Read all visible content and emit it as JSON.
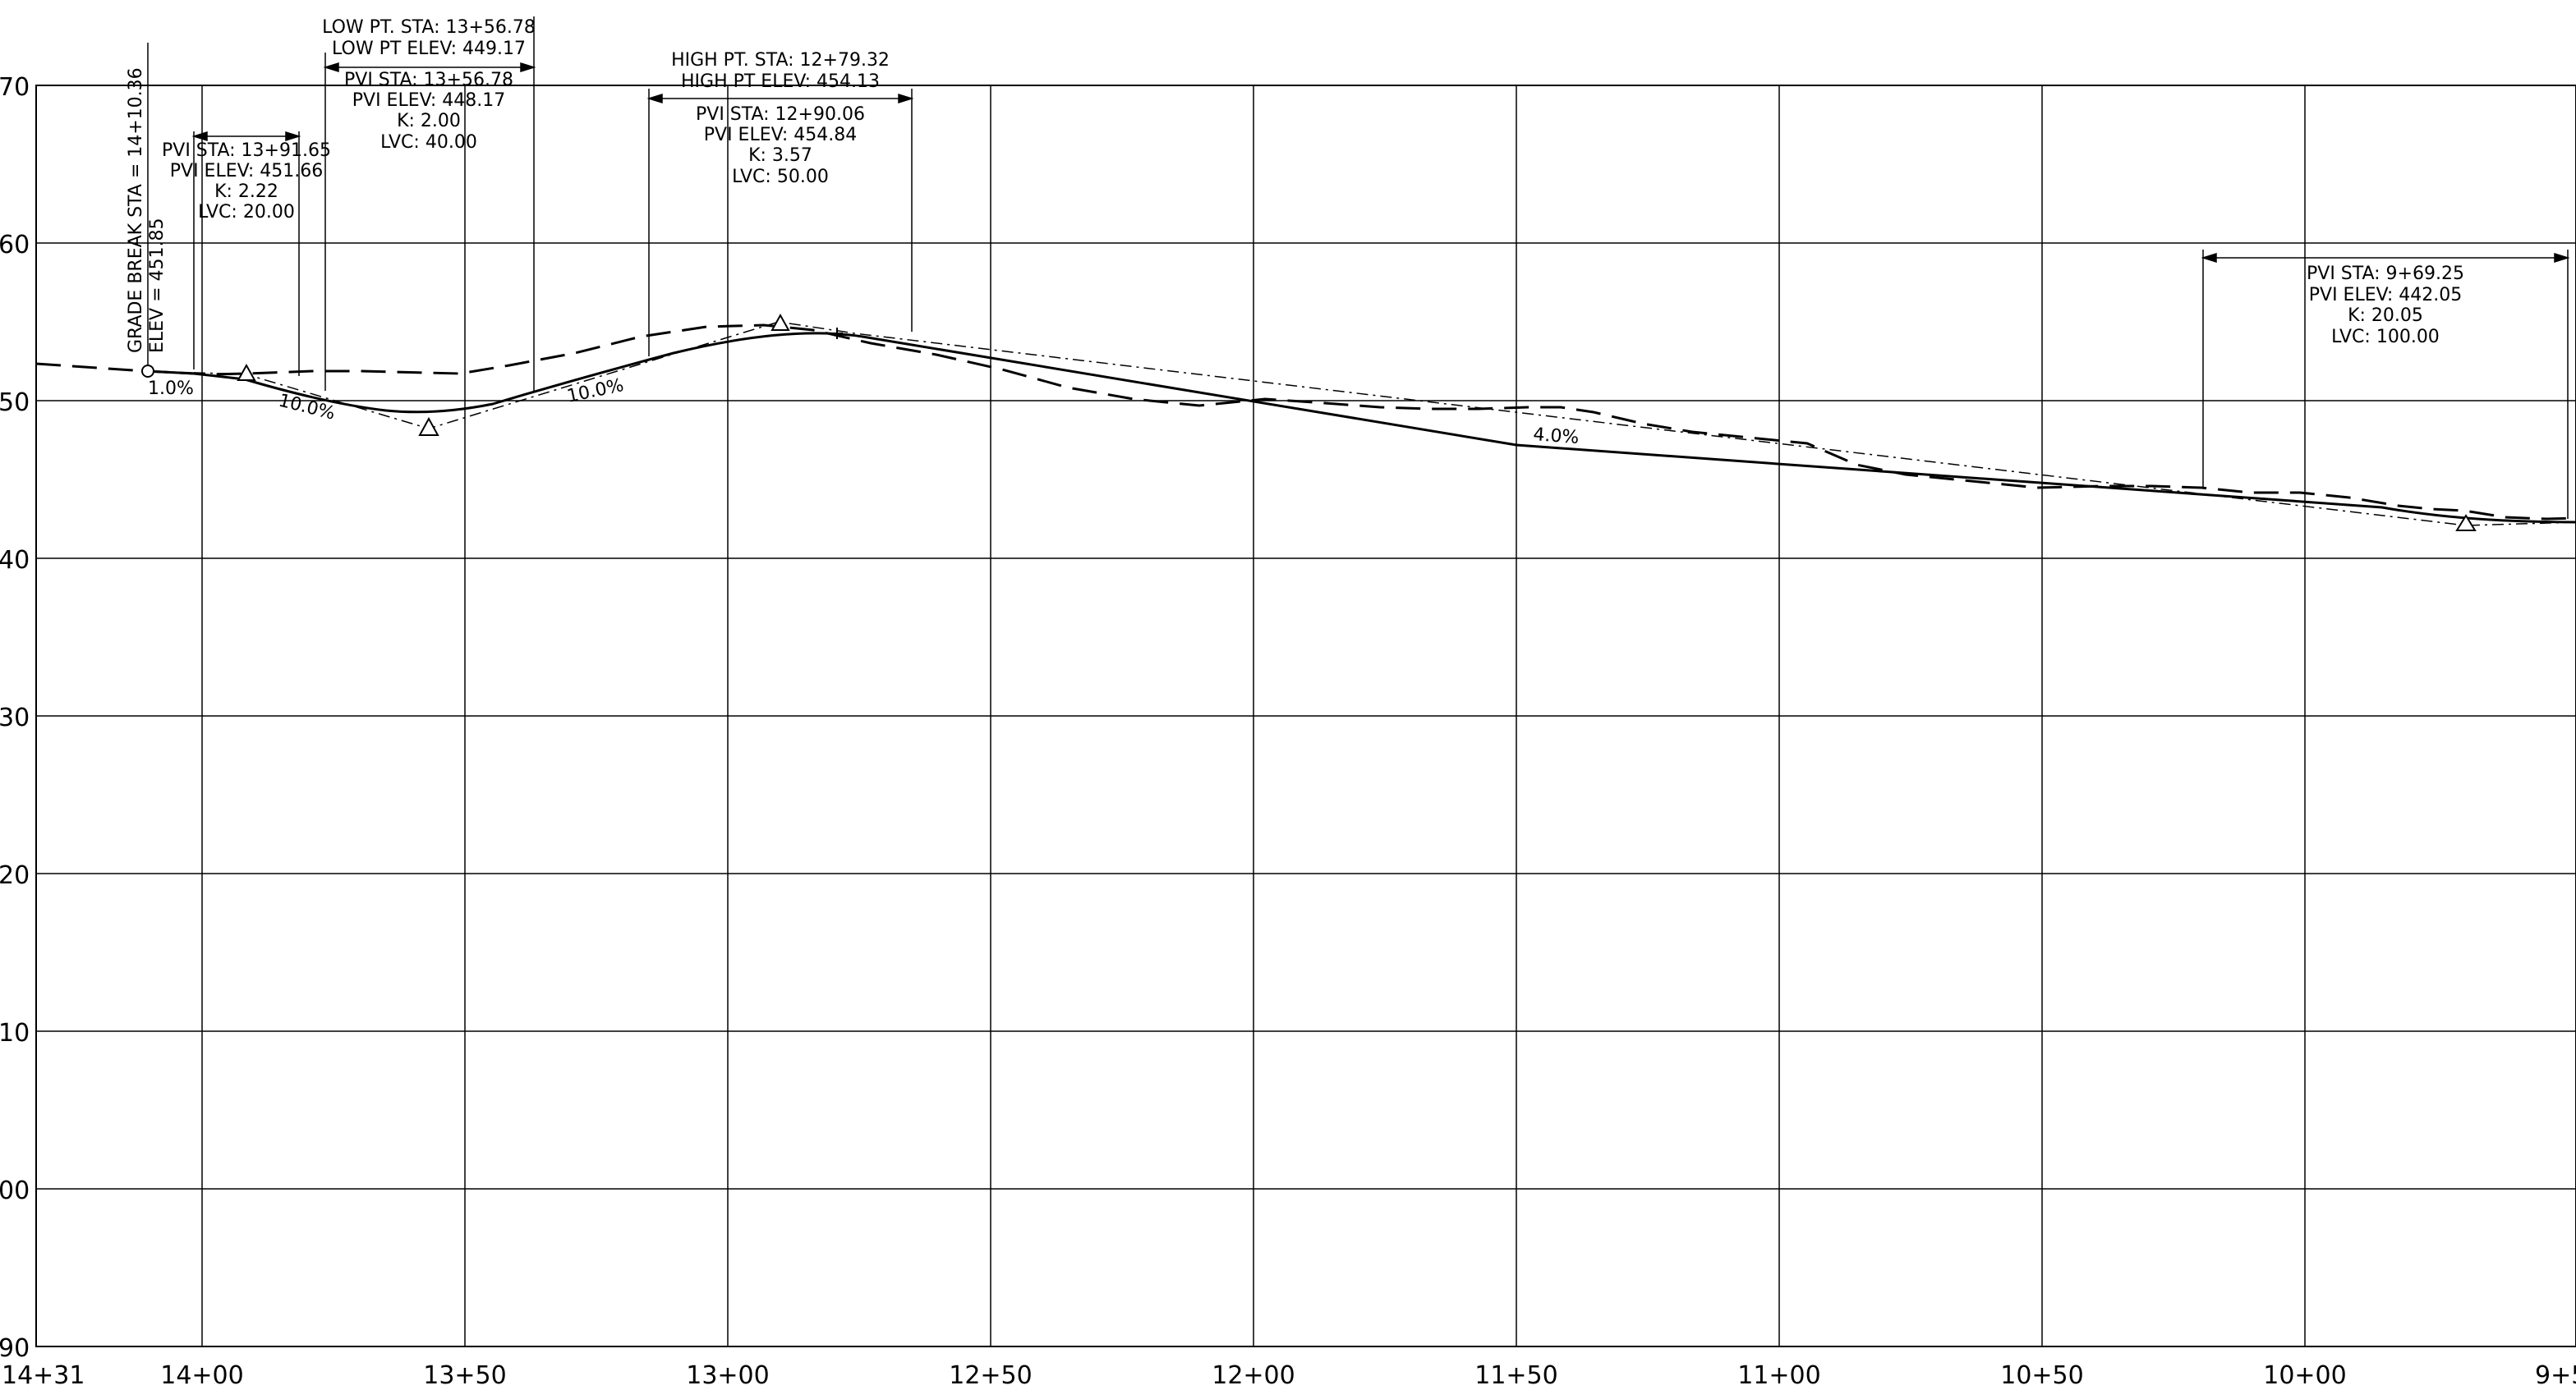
{
  "profile": {
    "grid": {
      "y_tick_labels": [
        "70",
        "60",
        "50",
        "40",
        "30",
        "20",
        "10",
        "00",
        "90"
      ],
      "x_tick_labels": [
        "14+31",
        "14+00",
        "13+50",
        "13+00",
        "12+50",
        "12+00",
        "11+50",
        "11+00",
        "10+50",
        "10+00",
        "9+5"
      ]
    },
    "grade_break": {
      "station_text": "GRADE BREAK STA = 14+10.36",
      "elev_text": "ELEV = 451.85"
    },
    "grades": {
      "g1": "1.0%",
      "g2": "10.0%",
      "g3": "10.0%",
      "g4": "4.0%"
    },
    "curves": [
      {
        "lines": [
          "PVI STA: 13+91.65",
          "PVI ELEV: 451.66",
          "K: 2.22",
          "LVC: 20.00"
        ]
      },
      {
        "top_lines": [
          "LOW PT. STA: 13+56.78",
          "LOW PT ELEV: 449.17"
        ],
        "lines": [
          "PVI STA: 13+56.78",
          "PVI ELEV: 448.17",
          "K: 2.00",
          "LVC: 40.00"
        ]
      },
      {
        "top_lines": [
          "HIGH PT. STA: 12+79.32",
          "HIGH PT ELEV: 454.13"
        ],
        "lines": [
          "PVI STA: 12+90.06",
          "PVI ELEV: 454.84",
          "K: 3.57",
          "LVC: 50.00"
        ]
      },
      {
        "lines": [
          "PVI STA: 9+69.25",
          "PVI ELEV: 442.05",
          "K: 20.05",
          "LVC: 100.00"
        ]
      }
    ]
  }
}
